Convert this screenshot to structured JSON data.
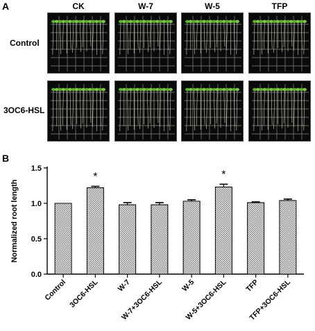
{
  "panel_a": {
    "letter": "A",
    "columns": [
      "CK",
      "W-7",
      "W-5",
      "TFP"
    ],
    "rows": [
      "Control",
      "3OC6-HSL"
    ]
  },
  "panel_b": {
    "letter": "B"
  },
  "chart_data": {
    "type": "bar",
    "title": "",
    "xlabel": "",
    "ylabel": "Normalized root length",
    "ylim": [
      0.0,
      1.5
    ],
    "yticks": [
      "0.0",
      "0.5",
      "1.0",
      "1.5"
    ],
    "categories": [
      "Control",
      "3OC6-HSL",
      "W-7",
      "W-7+3OC6-HSL",
      "W-5",
      "W-5+3OC6-HSL",
      "TFP",
      "TFP+3OC6-HSL"
    ],
    "values": [
      1.0,
      1.22,
      0.98,
      0.98,
      1.03,
      1.23,
      1.01,
      1.04
    ],
    "errors": [
      0.0,
      0.02,
      0.03,
      0.03,
      0.02,
      0.04,
      0.01,
      0.02
    ],
    "annotations": [
      "",
      "*",
      "",
      "",
      "",
      "*",
      "",
      ""
    ],
    "fill_pattern": "stippled",
    "colors": {
      "bar_fill": "#dcdcdc",
      "bar_dots": "#444444",
      "axis": "#000000"
    }
  }
}
